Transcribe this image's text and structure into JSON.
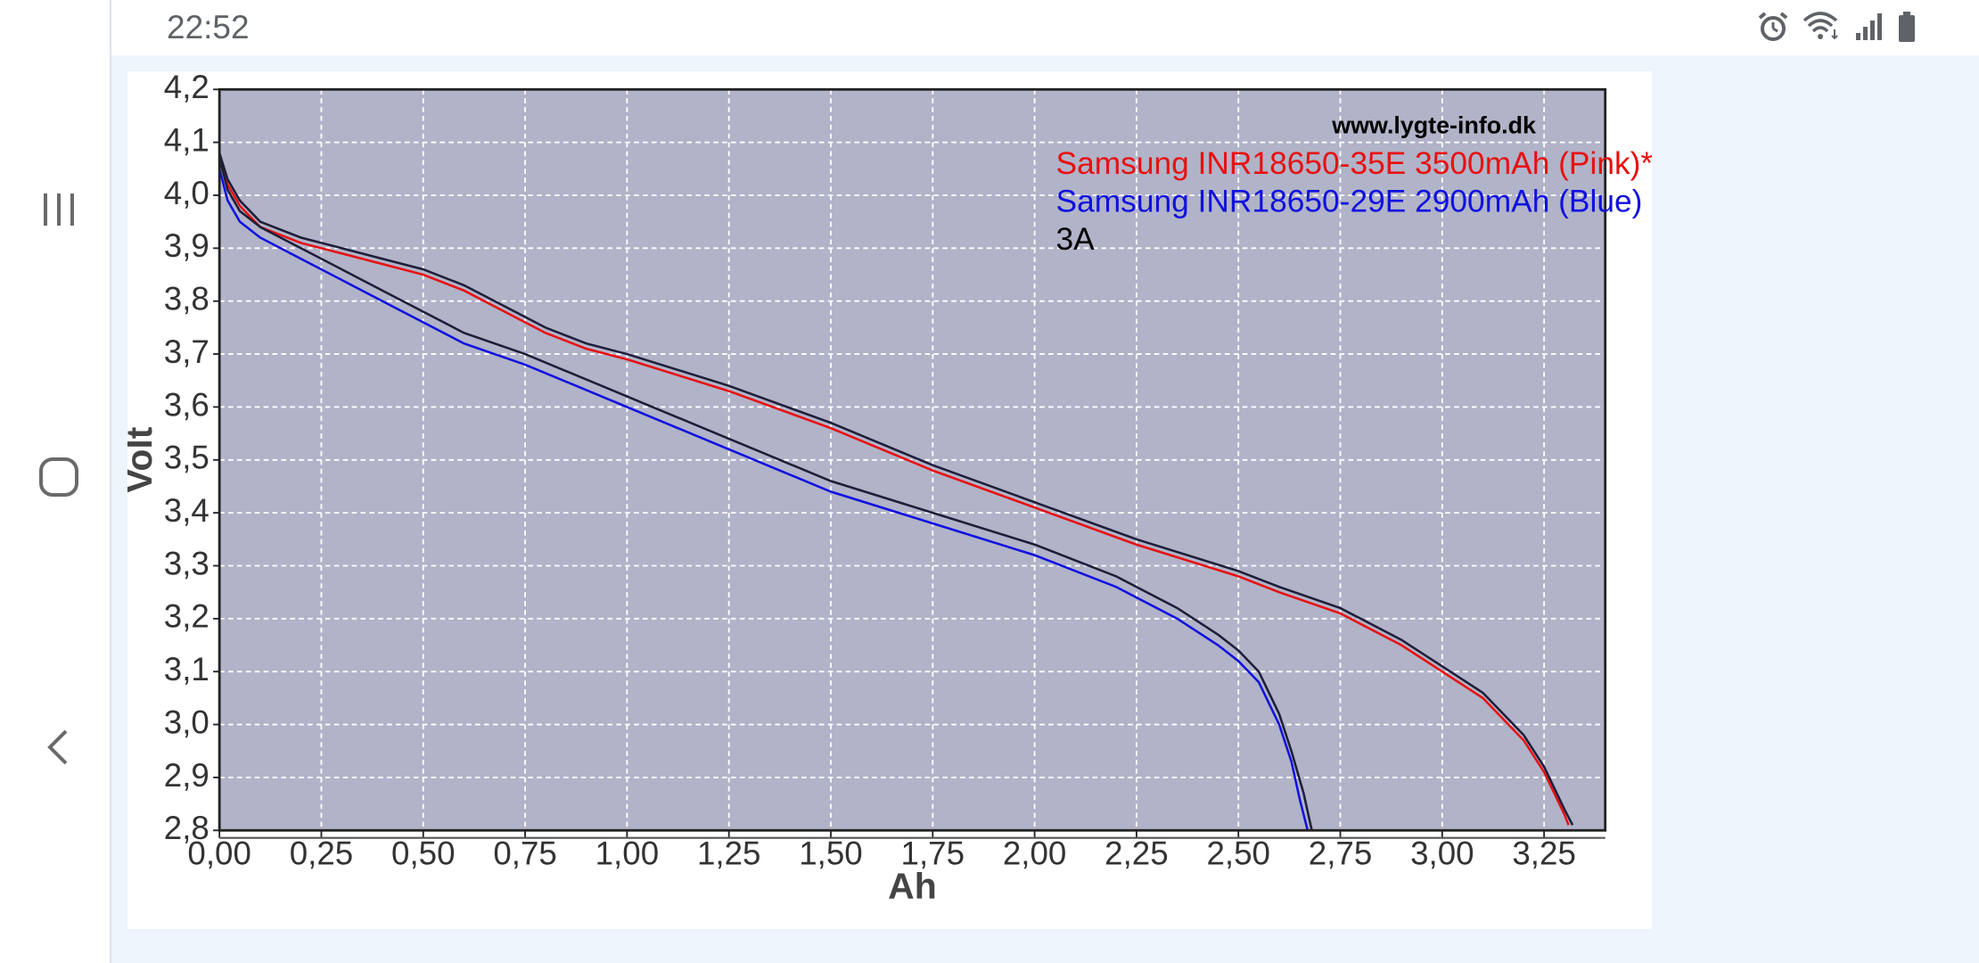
{
  "status_bar": {
    "time": "22:52",
    "icons": [
      "alarm-icon",
      "wifi-icon",
      "signal-icon",
      "battery-icon"
    ]
  },
  "nav": {
    "items": [
      "recent-apps-icon",
      "home-icon",
      "back-icon"
    ]
  },
  "chart_data": {
    "type": "line",
    "title": "",
    "xlabel": "Ah",
    "ylabel": "Volt",
    "xlim": [
      0,
      3.4
    ],
    "ylim": [
      2.8,
      4.2
    ],
    "x_ticks": [
      0,
      0.25,
      0.5,
      0.75,
      1.0,
      1.25,
      1.5,
      1.75,
      2.0,
      2.25,
      2.5,
      2.75,
      3.0,
      3.25
    ],
    "x_tick_labels": [
      "0,00",
      "0,25",
      "0,50",
      "0,75",
      "1,00",
      "1,25",
      "1,50",
      "1,75",
      "2,00",
      "2,25",
      "2,50",
      "2,75",
      "3,00",
      "3,25"
    ],
    "y_ticks": [
      2.8,
      2.9,
      3.0,
      3.1,
      3.2,
      3.3,
      3.4,
      3.5,
      3.6,
      3.7,
      3.8,
      3.9,
      4.0,
      4.1,
      4.2
    ],
    "y_tick_labels": [
      "2,8",
      "2,9",
      "3,0",
      "3,1",
      "3,2",
      "3,3",
      "3,4",
      "3,5",
      "3,6",
      "3,7",
      "3,8",
      "3,9",
      "4,0",
      "4,1",
      "4,2"
    ],
    "grid": true,
    "background_color": "#b1b3c8",
    "watermark": "www.lygte-info.dk",
    "legend_position": "top-right",
    "legend": [
      {
        "text": "Samsung INR18650-35E 3500mAh (Pink)*",
        "color": "#e81010"
      },
      {
        "text": "Samsung INR18650-29E 2900mAh (Blue)",
        "color": "#1010e0"
      },
      {
        "text": "3A",
        "color": "#000000"
      }
    ],
    "series": [
      {
        "color": "#e81010",
        "x": [
          0,
          0.02,
          0.05,
          0.1,
          0.2,
          0.3,
          0.4,
          0.5,
          0.6,
          0.7,
          0.8,
          0.9,
          1.0,
          1.25,
          1.5,
          1.75,
          2.0,
          2.25,
          2.5,
          2.6,
          2.75,
          2.9,
          3.0,
          3.1,
          3.2,
          3.25,
          3.3,
          3.31
        ],
        "y": [
          4.07,
          4.02,
          3.98,
          3.94,
          3.91,
          3.89,
          3.87,
          3.85,
          3.82,
          3.78,
          3.74,
          3.71,
          3.69,
          3.63,
          3.56,
          3.48,
          3.41,
          3.34,
          3.28,
          3.25,
          3.21,
          3.15,
          3.1,
          3.05,
          2.97,
          2.91,
          2.83,
          2.81
        ]
      },
      {
        "color": "#1e1e3a",
        "x": [
          0,
          0.02,
          0.05,
          0.1,
          0.2,
          0.3,
          0.4,
          0.5,
          0.6,
          0.7,
          0.8,
          0.9,
          1.0,
          1.25,
          1.5,
          1.75,
          2.0,
          2.25,
          2.5,
          2.6,
          2.75,
          2.9,
          3.0,
          3.1,
          3.2,
          3.25,
          3.3,
          3.32
        ],
        "y": [
          4.08,
          4.03,
          3.99,
          3.95,
          3.92,
          3.9,
          3.88,
          3.86,
          3.83,
          3.79,
          3.75,
          3.72,
          3.7,
          3.64,
          3.57,
          3.49,
          3.42,
          3.35,
          3.29,
          3.26,
          3.22,
          3.16,
          3.11,
          3.06,
          2.98,
          2.92,
          2.84,
          2.81
        ]
      },
      {
        "color": "#1010e0",
        "x": [
          0,
          0.02,
          0.05,
          0.1,
          0.2,
          0.3,
          0.4,
          0.5,
          0.6,
          0.75,
          1.0,
          1.25,
          1.5,
          1.75,
          2.0,
          2.2,
          2.35,
          2.45,
          2.5,
          2.55,
          2.6,
          2.63,
          2.65,
          2.67
        ],
        "y": [
          4.05,
          3.99,
          3.95,
          3.92,
          3.88,
          3.84,
          3.8,
          3.76,
          3.72,
          3.68,
          3.6,
          3.52,
          3.44,
          3.38,
          3.32,
          3.26,
          3.2,
          3.15,
          3.12,
          3.08,
          3.0,
          2.93,
          2.86,
          2.8
        ]
      },
      {
        "color": "#1e1e3a",
        "x": [
          0,
          0.02,
          0.05,
          0.1,
          0.2,
          0.3,
          0.4,
          0.5,
          0.6,
          0.75,
          1.0,
          1.25,
          1.5,
          1.75,
          2.0,
          2.2,
          2.35,
          2.45,
          2.5,
          2.55,
          2.6,
          2.63,
          2.66,
          2.68
        ],
        "y": [
          4.07,
          4.01,
          3.97,
          3.94,
          3.9,
          3.86,
          3.82,
          3.78,
          3.74,
          3.7,
          3.62,
          3.54,
          3.46,
          3.4,
          3.34,
          3.28,
          3.22,
          3.17,
          3.14,
          3.1,
          3.02,
          2.95,
          2.87,
          2.8
        ]
      }
    ]
  }
}
